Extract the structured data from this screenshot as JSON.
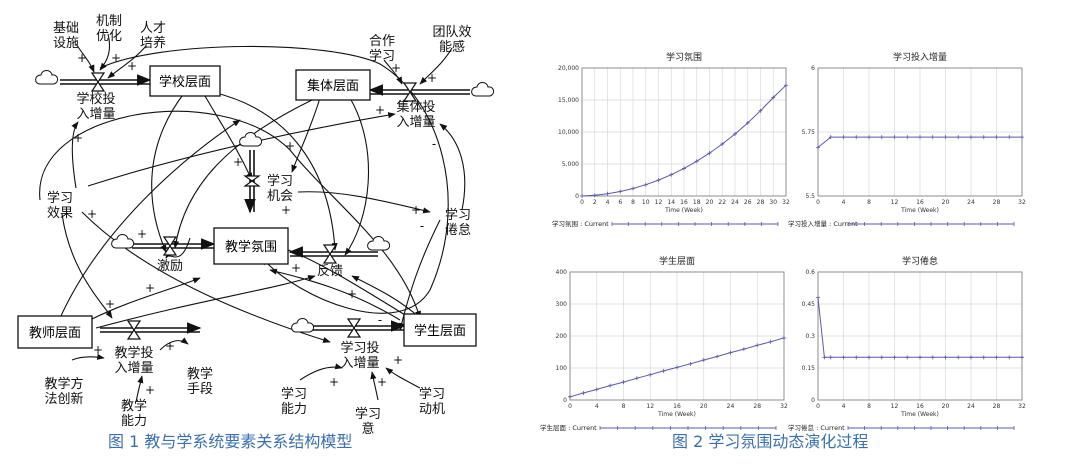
{
  "diagram": {
    "stocks": {
      "school": "学校层面",
      "collective": "集体层面",
      "atmosphere": "教学氛围",
      "teacher": "教师层面",
      "student": "学生层面"
    },
    "rates": {
      "school_in": [
        "学校投",
        "入增量"
      ],
      "collective_in": [
        "集体投",
        "入增量"
      ],
      "teacher_in": [
        "教学投",
        "入增量"
      ],
      "student_in": [
        "学习投",
        "入增量"
      ]
    },
    "aux": {
      "infrastructure": [
        "基础",
        "设施"
      ],
      "mechanism": [
        "机制",
        "优化"
      ],
      "talent": [
        "人才",
        "培养"
      ],
      "cooperation": [
        "合作",
        "学习"
      ],
      "team_efficacy": [
        "团队效",
        "能感"
      ],
      "learning_effect": [
        "学习",
        "效果"
      ],
      "learning_opportunity": [
        "学习",
        "机会"
      ],
      "learning_burnout": [
        "学习",
        "倦怠"
      ],
      "incentive": "激励",
      "feedback": "反馈",
      "method_innovation": [
        "教学方",
        "法创新"
      ],
      "teaching_ability": [
        "教学",
        "能力"
      ],
      "teaching_means": [
        "教学",
        "手段"
      ],
      "learning_ability": [
        "学习",
        "能力"
      ],
      "learning_wish": [
        "学习",
        "意"
      ],
      "learning_motivation": [
        "学习",
        "动机"
      ]
    },
    "signs": {
      "plus": "+",
      "minus": "-"
    }
  },
  "captions": {
    "fig1": "图 1  教与学系统要素关系结构模型",
    "fig2": "图 2 学习氛围动态演化过程"
  },
  "chart_data": [
    {
      "type": "line",
      "title": "学习氛围",
      "xlabel": "Time (Week)",
      "ylabel": "",
      "x_ticks": [
        "0",
        "2",
        "4",
        "6",
        "8",
        "10",
        "12",
        "14",
        "16",
        "18",
        "20",
        "22",
        "24",
        "26",
        "28",
        "30",
        "32"
      ],
      "y_ticks": [
        "0",
        "5,000",
        "10,000",
        "15,000",
        "20,000"
      ],
      "xlim": [
        0,
        32
      ],
      "ylim": [
        0,
        20000
      ],
      "legend": "学习氛围 : Current",
      "series": [
        {
          "name": "学习氛围 : Current",
          "x": [
            0,
            2,
            4,
            6,
            8,
            10,
            12,
            14,
            16,
            18,
            20,
            22,
            24,
            26,
            28,
            30,
            32
          ],
          "values": [
            0,
            110,
            350,
            700,
            1170,
            1760,
            2480,
            3330,
            4310,
            5430,
            6700,
            8120,
            9690,
            11420,
            13320,
            15390,
            17300
          ]
        }
      ]
    },
    {
      "type": "line",
      "title": "学习投入增量",
      "xlabel": "Time (Week)",
      "ylabel": "",
      "x_ticks": [
        "0",
        "4",
        "8",
        "12",
        "16",
        "20",
        "24",
        "28",
        "32"
      ],
      "y_ticks": [
        "5.5",
        "5.75",
        "6"
      ],
      "xlim": [
        0,
        32
      ],
      "ylim": [
        5.5,
        6
      ],
      "legend": "学习投入增量 : Current",
      "series": [
        {
          "name": "学习投入增量 : Current",
          "x": [
            0,
            2,
            4,
            6,
            8,
            10,
            12,
            14,
            16,
            18,
            20,
            22,
            24,
            26,
            28,
            30,
            32
          ],
          "values": [
            5.69,
            5.73,
            5.73,
            5.73,
            5.73,
            5.73,
            5.73,
            5.73,
            5.73,
            5.73,
            5.73,
            5.73,
            5.73,
            5.73,
            5.73,
            5.73,
            5.73
          ]
        }
      ]
    },
    {
      "type": "line",
      "title": "学生层面",
      "xlabel": "Time (Week)",
      "ylabel": "",
      "x_ticks": [
        "0",
        "4",
        "8",
        "12",
        "16",
        "20",
        "24",
        "28",
        "32"
      ],
      "y_ticks": [
        "0",
        "100",
        "200",
        "300",
        "400"
      ],
      "xlim": [
        0,
        32
      ],
      "ylim": [
        0,
        400
      ],
      "legend": "学生层面 : Current",
      "series": [
        {
          "name": "学生层面 : Current",
          "x": [
            0,
            2,
            4,
            6,
            8,
            10,
            12,
            14,
            16,
            18,
            20,
            22,
            24,
            26,
            28,
            30,
            32
          ],
          "values": [
            10,
            22,
            33,
            45,
            56,
            68,
            79,
            91,
            102,
            113,
            125,
            136,
            148,
            159,
            171,
            182,
            194
          ]
        }
      ]
    },
    {
      "type": "line",
      "title": "学习倦怠",
      "xlabel": "Time (Week)",
      "ylabel": "",
      "x_ticks": [
        "0",
        "4",
        "8",
        "12",
        "16",
        "20",
        "24",
        "28",
        "32"
      ],
      "y_ticks": [
        "0",
        "0.15",
        "0.3",
        "0.45",
        "0.6"
      ],
      "xlim": [
        0,
        32
      ],
      "ylim": [
        0,
        0.6
      ],
      "legend": "学习倦怠 : Current",
      "series": [
        {
          "name": "学习倦怠 : Current",
          "x": [
            0,
            1,
            2,
            4,
            6,
            8,
            10,
            12,
            14,
            16,
            18,
            20,
            22,
            24,
            26,
            28,
            30,
            32
          ],
          "values": [
            0.48,
            0.2,
            0.2,
            0.2,
            0.2,
            0.2,
            0.2,
            0.2,
            0.2,
            0.2,
            0.2,
            0.2,
            0.2,
            0.2,
            0.2,
            0.2,
            0.2,
            0.2
          ]
        }
      ]
    }
  ]
}
